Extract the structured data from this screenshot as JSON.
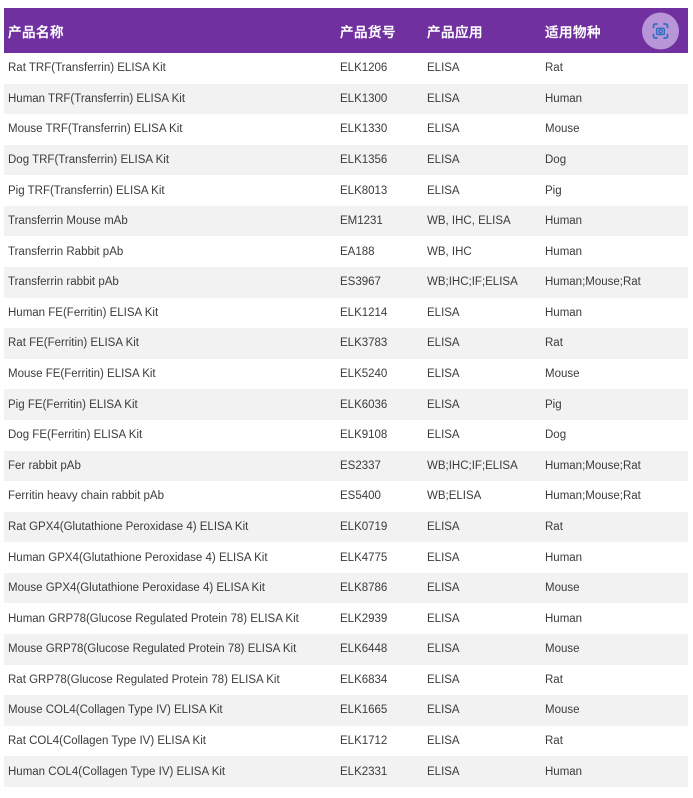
{
  "header": {
    "columns": [
      {
        "key": "name",
        "label": "产品名称"
      },
      {
        "key": "code",
        "label": "产品货号"
      },
      {
        "key": "application",
        "label": "产品应用"
      },
      {
        "key": "species",
        "label": "适用物种"
      }
    ],
    "scan_icon": "camera-scan-icon"
  },
  "colors": {
    "header_bg": "#7030A0",
    "header_text": "#FFFFFF",
    "row_bg": "#FFFFFF",
    "row_alt_bg": "#F2F2F2",
    "body_text": "#3B3B3B",
    "icon_circle_bg": "#B795D6",
    "icon_glyph": "#2E6FC0"
  },
  "rows": [
    {
      "name": "Rat TRF(Transferrin) ELISA Kit",
      "code": "ELK1206",
      "application": "ELISA",
      "species": "Rat"
    },
    {
      "name": "Human TRF(Transferrin) ELISA Kit",
      "code": "ELK1300",
      "application": "ELISA",
      "species": "Human"
    },
    {
      "name": "Mouse TRF(Transferrin) ELISA Kit",
      "code": "ELK1330",
      "application": "ELISA",
      "species": "Mouse"
    },
    {
      "name": "Dog TRF(Transferrin) ELISA Kit",
      "code": "ELK1356",
      "application": "ELISA",
      "species": "Dog"
    },
    {
      "name": "Pig TRF(Transferrin) ELISA Kit",
      "code": "ELK8013",
      "application": "ELISA",
      "species": "Pig"
    },
    {
      "name": "Transferrin Mouse mAb",
      "code": "EM1231",
      "application": "WB, IHC, ELISA",
      "species": "Human"
    },
    {
      "name": "Transferrin Rabbit pAb",
      "code": "EA188",
      "application": "WB, IHC",
      "species": "Human"
    },
    {
      "name": "Transferrin rabbit pAb",
      "code": "ES3967",
      "application": "WB;IHC;IF;ELISA",
      "species": "Human;Mouse;Rat"
    },
    {
      "name": "Human FE(Ferritin) ELISA Kit",
      "code": "ELK1214",
      "application": "ELISA",
      "species": "Human"
    },
    {
      "name": "Rat FE(Ferritin) ELISA Kit",
      "code": "ELK3783",
      "application": "ELISA",
      "species": "Rat"
    },
    {
      "name": "Mouse FE(Ferritin) ELISA Kit",
      "code": "ELK5240",
      "application": "ELISA",
      "species": "Mouse"
    },
    {
      "name": "Pig FE(Ferritin) ELISA Kit",
      "code": "ELK6036",
      "application": "ELISA",
      "species": "Pig"
    },
    {
      "name": "Dog FE(Ferritin) ELISA Kit",
      "code": "ELK9108",
      "application": "ELISA",
      "species": "Dog"
    },
    {
      "name": "Fer rabbit pAb",
      "code": "ES2337",
      "application": "WB;IHC;IF;ELISA",
      "species": "Human;Mouse;Rat"
    },
    {
      "name": "Ferritin heavy chain rabbit pAb",
      "code": "ES5400",
      "application": "WB;ELISA",
      "species": "Human;Mouse;Rat"
    },
    {
      "name": "Rat GPX4(Glutathione Peroxidase 4) ELISA Kit",
      "code": "ELK0719",
      "application": "ELISA",
      "species": "Rat"
    },
    {
      "name": "Human GPX4(Glutathione Peroxidase 4) ELISA Kit",
      "code": "ELK4775",
      "application": "ELISA",
      "species": "Human"
    },
    {
      "name": "Mouse GPX4(Glutathione Peroxidase 4) ELISA Kit",
      "code": "ELK8786",
      "application": "ELISA",
      "species": "Mouse"
    },
    {
      "name": "Human GRP78(Glucose Regulated Protein 78) ELISA Kit",
      "code": "ELK2939",
      "application": "ELISA",
      "species": "Human"
    },
    {
      "name": "Mouse GRP78(Glucose Regulated Protein 78) ELISA Kit",
      "code": "ELK6448",
      "application": "ELISA",
      "species": "Mouse"
    },
    {
      "name": "Rat GRP78(Glucose Regulated Protein 78) ELISA Kit",
      "code": "ELK6834",
      "application": "ELISA",
      "species": "Rat"
    },
    {
      "name": "Mouse COL4(Collagen Type IV) ELISA Kit",
      "code": "ELK1665",
      "application": "ELISA",
      "species": "Mouse"
    },
    {
      "name": "Rat COL4(Collagen Type IV) ELISA Kit",
      "code": "ELK1712",
      "application": "ELISA",
      "species": "Rat"
    },
    {
      "name": "Human COL4(Collagen Type IV) ELISA Kit",
      "code": "ELK2331",
      "application": "ELISA",
      "species": "Human"
    }
  ]
}
